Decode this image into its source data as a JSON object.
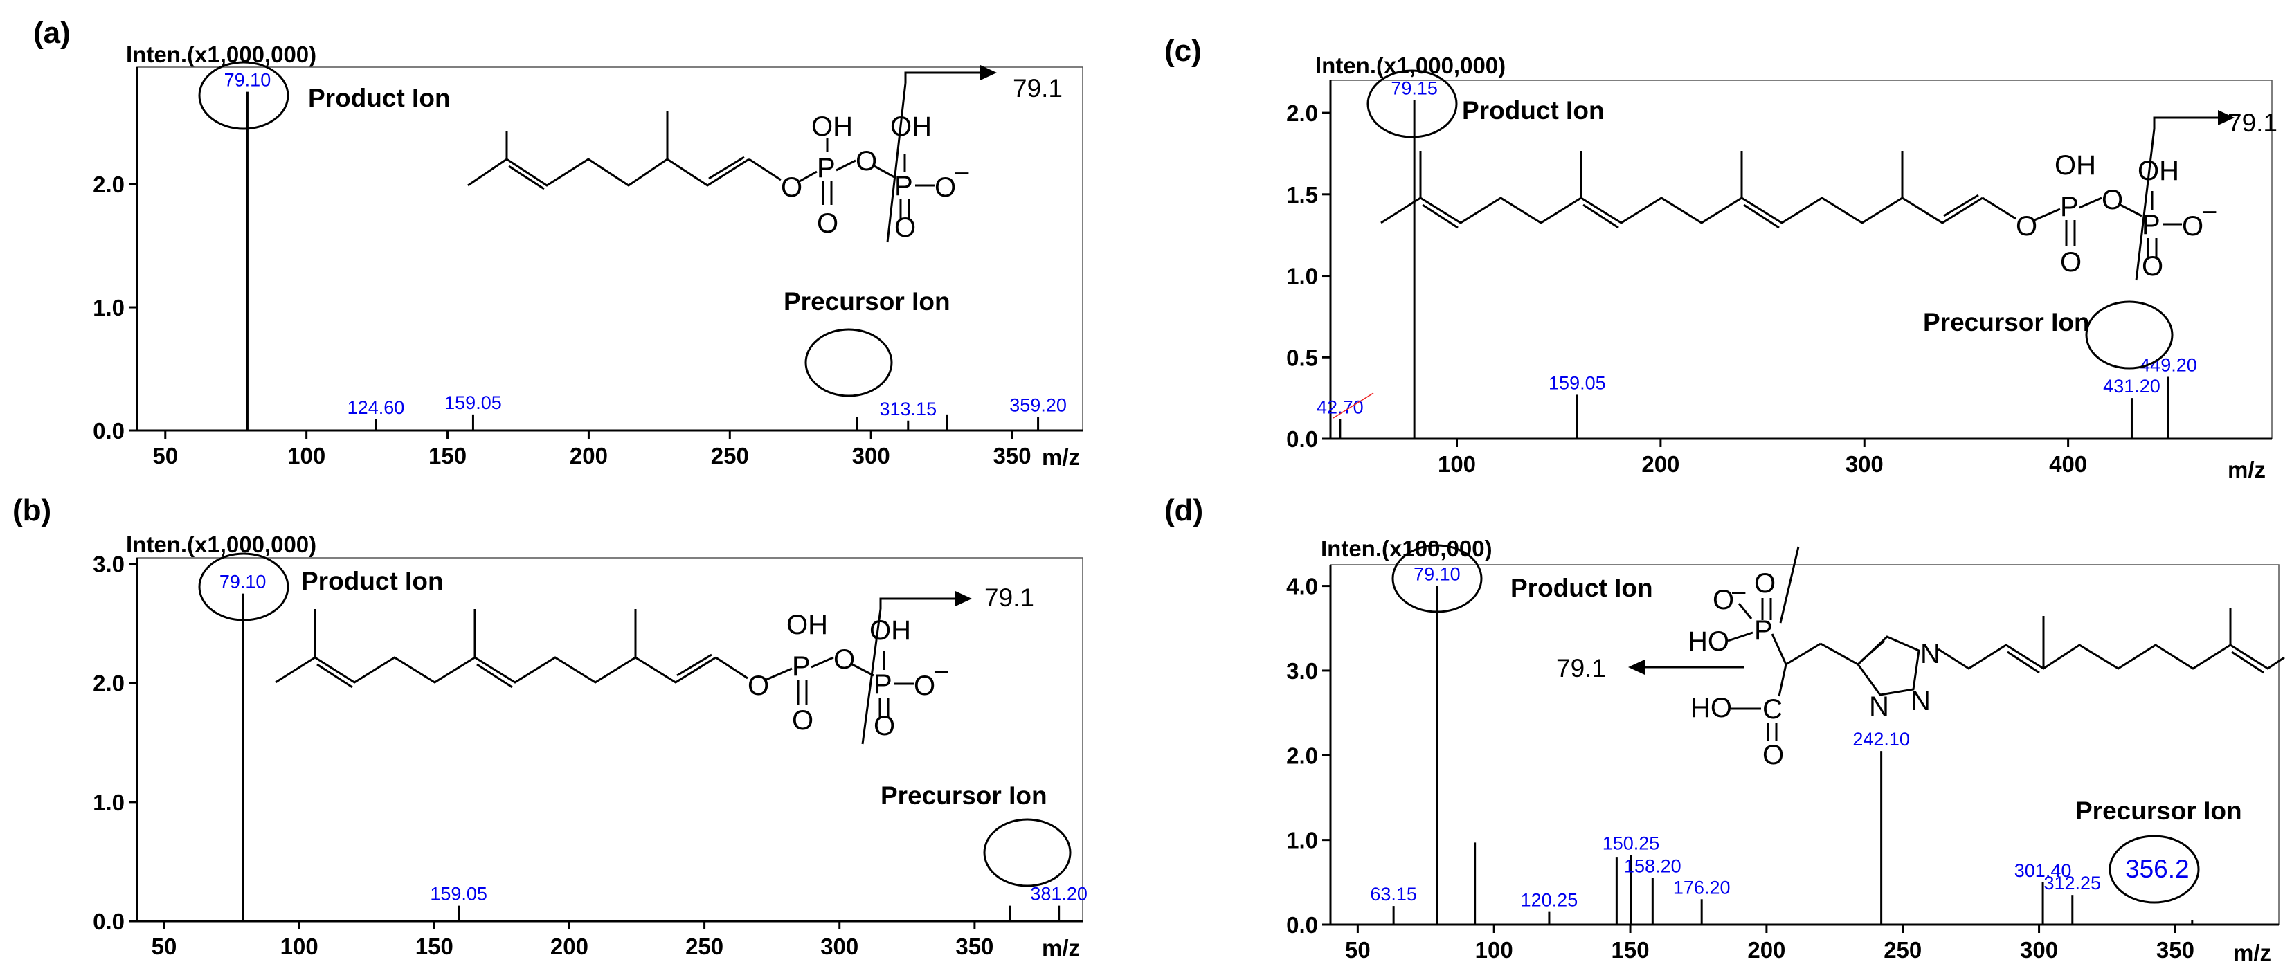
{
  "chart_data": [
    {
      "type": "bar",
      "panel": "(a)",
      "ylabel": "Inten.(x1,000,000)",
      "xlabel": "m/z",
      "xlim": [
        40,
        375
      ],
      "ylim": [
        0,
        2.95
      ],
      "xticks": [
        50,
        100,
        150,
        200,
        250,
        300,
        350
      ],
      "xtick_labels": [
        "50",
        "100",
        "150",
        "200",
        "250",
        "300",
        "350"
      ],
      "yticks": [
        0,
        1,
        2
      ],
      "ytick_labels": [
        "0.0",
        "1.0",
        "2.0"
      ],
      "peaks": [
        {
          "x": 79.1,
          "y": 2.75,
          "label": "79.10"
        },
        {
          "x": 124.6,
          "y": 0.09,
          "label": "124.60"
        },
        {
          "x": 159.05,
          "y": 0.13,
          "label": "159.05"
        },
        {
          "x": 295.0,
          "y": 0.11,
          "label": ""
        },
        {
          "x": 313.15,
          "y": 0.08,
          "label": "313.15"
        },
        {
          "x": 327.0,
          "y": 0.13,
          "label": ""
        },
        {
          "x": 359.2,
          "y": 0.11,
          "label": "359.20"
        }
      ],
      "product_ion": {
        "text": "Product Ion",
        "mz": "79.10"
      },
      "precursor_ion": {
        "text": "Precursor Ion",
        "mz": "313.15"
      },
      "fragment_label": "79.1",
      "structure": {
        "oh1": "OH",
        "oh2": "OH",
        "o_link1": "O",
        "o_link2": "O",
        "p1": "P",
        "p2": "P",
        "o_minus": "O",
        "o_eq1": "O",
        "o_eq2": "O",
        "minus": "−"
      }
    },
    {
      "type": "bar",
      "panel": "(b)",
      "ylabel": "Inten.(x1,000,000)",
      "xlabel": "m/z",
      "xlim": [
        40,
        390
      ],
      "ylim": [
        0,
        3.05
      ],
      "xticks": [
        50,
        100,
        150,
        200,
        250,
        300,
        350
      ],
      "xtick_labels": [
        "50",
        "100",
        "150",
        "200",
        "250",
        "300",
        "350"
      ],
      "yticks": [
        0,
        1,
        2,
        3
      ],
      "ytick_labels": [
        "0.0",
        "1.0",
        "2.0",
        "3.0"
      ],
      "peaks": [
        {
          "x": 79.1,
          "y": 2.75,
          "label": "79.10"
        },
        {
          "x": 159.05,
          "y": 0.13,
          "label": "159.05"
        },
        {
          "x": 363.0,
          "y": 0.13,
          "label": ""
        },
        {
          "x": 381.2,
          "y": 0.13,
          "label": "381.20"
        }
      ],
      "product_ion": {
        "text": "Product Ion",
        "mz": "79.10"
      },
      "precursor_ion": {
        "text": "Precursor Ion",
        "mz": "381.20"
      },
      "fragment_label": "79.1",
      "structure": {
        "oh1": "OH",
        "oh2": "OH",
        "o_link1": "O",
        "o_link2": "O",
        "p1": "P",
        "p2": "P",
        "o_minus": "O",
        "o_eq1": "O",
        "o_eq2": "O",
        "minus": "−"
      }
    },
    {
      "type": "bar",
      "panel": "(c)",
      "ylabel": "Inten.(x1,000,000)",
      "xlabel": "m/z",
      "xlim": [
        38,
        500
      ],
      "ylim": [
        0,
        2.2
      ],
      "xticks": [
        100,
        200,
        300,
        400
      ],
      "xtick_labels": [
        "100",
        "200",
        "300",
        "400"
      ],
      "yticks": [
        0,
        0.5,
        1.0,
        1.5,
        2.0
      ],
      "ytick_labels": [
        "0.0",
        "0.5",
        "1.0",
        "1.5",
        "2.0"
      ],
      "peaks": [
        {
          "x": 42.7,
          "y": 0.12,
          "label": "42.70"
        },
        {
          "x": 79.15,
          "y": 2.08,
          "label": "79.15"
        },
        {
          "x": 159.05,
          "y": 0.27,
          "label": "159.05"
        },
        {
          "x": 431.2,
          "y": 0.25,
          "label": "431.20"
        },
        {
          "x": 449.2,
          "y": 0.38,
          "label": "449.20"
        }
      ],
      "product_ion": {
        "text": "Product Ion",
        "mz": "79.15"
      },
      "precursor_ion": {
        "text": "Precursor Ion",
        "mz": "449.20"
      },
      "fragment_label": "79.1",
      "structure": {
        "oh1": "OH",
        "oh2": "OH",
        "o_link1": "O",
        "o_link2": "O",
        "p1": "P",
        "p2": "P",
        "o_minus": "O",
        "o_eq1": "O",
        "o_eq2": "O",
        "minus": "−"
      }
    },
    {
      "type": "bar",
      "panel": "(d)",
      "ylabel": "Inten.(x100,000)",
      "xlabel": "m/z",
      "xlim": [
        40,
        388
      ],
      "ylim": [
        0,
        4.25
      ],
      "xticks": [
        50,
        100,
        150,
        200,
        250,
        300,
        350
      ],
      "xtick_labels": [
        "50",
        "100",
        "150",
        "200",
        "250",
        "300",
        "350"
      ],
      "yticks": [
        0,
        1,
        2,
        3,
        4
      ],
      "ytick_labels": [
        "0.0",
        "1.0",
        "2.0",
        "3.0",
        "4.0"
      ],
      "peaks": [
        {
          "x": 63.15,
          "y": 0.22,
          "label": "63.15"
        },
        {
          "x": 79.1,
          "y": 4.0,
          "label": "79.10"
        },
        {
          "x": 93.0,
          "y": 0.97,
          "label": ""
        },
        {
          "x": 120.25,
          "y": 0.15,
          "label": "120.25"
        },
        {
          "x": 145.0,
          "y": 0.8,
          "label": ""
        },
        {
          "x": 150.25,
          "y": 0.82,
          "label": "150.25"
        },
        {
          "x": 158.2,
          "y": 0.55,
          "label": "158.20"
        },
        {
          "x": 176.2,
          "y": 0.3,
          "label": "176.20"
        },
        {
          "x": 242.1,
          "y": 2.05,
          "label": "242.10"
        },
        {
          "x": 301.4,
          "y": 0.5,
          "label": "301.40"
        },
        {
          "x": 312.25,
          "y": 0.35,
          "label": "312.25"
        },
        {
          "x": 356.2,
          "y": 0.05,
          "label": ""
        }
      ],
      "product_ion": {
        "text": "Product Ion",
        "mz": "79.10"
      },
      "precursor_ion": {
        "text": "Precursor Ion",
        "mz": "356.2"
      },
      "fragment_label": "79.1",
      "structure": {
        "o_top": "O",
        "o_minus": "O",
        "minus": "−",
        "ho_p": "HO",
        "p": "P",
        "ho_c": "HO",
        "c": "C",
        "o_eq": "O",
        "n1": "N",
        "n2": "N",
        "n3": "N"
      }
    }
  ]
}
